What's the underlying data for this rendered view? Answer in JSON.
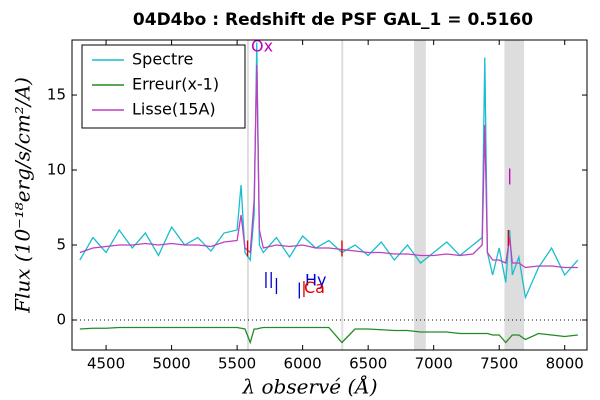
{
  "chart_data": {
    "type": "line",
    "title": "04D4bo : Redshift de PSF GAL_1 = 0.5160",
    "x_label": "λ observé (Å)",
    "y_label": "Flux (10⁻¹⁸erg/s/cm²/A)",
    "x": [
      4300,
      4400,
      4500,
      4600,
      4700,
      4800,
      4900,
      5000,
      5100,
      5200,
      5300,
      5400,
      5500,
      5530,
      5560,
      5600,
      5630,
      5650,
      5670,
      5700,
      5800,
      5900,
      6000,
      6100,
      6200,
      6300,
      6400,
      6500,
      6600,
      6700,
      6800,
      6900,
      7000,
      7100,
      7200,
      7300,
      7370,
      7390,
      7410,
      7450,
      7500,
      7550,
      7580,
      7600,
      7650,
      7700,
      7800,
      7900,
      8000,
      8100
    ],
    "series": [
      {
        "name": "Spectre",
        "color": "#17becf",
        "values": [
          4.0,
          5.5,
          4.5,
          6.0,
          4.8,
          5.8,
          4.3,
          6.2,
          5.0,
          5.5,
          4.6,
          5.8,
          6.0,
          9.0,
          4.5,
          4.0,
          7.0,
          18.5,
          5.0,
          4.5,
          5.5,
          4.2,
          5.6,
          4.8,
          5.3,
          4.5,
          5.0,
          4.3,
          5.2,
          4.0,
          5.0,
          3.8,
          4.5,
          5.2,
          4.3,
          5.0,
          5.5,
          17.5,
          4.5,
          3.0,
          4.8,
          2.5,
          6.0,
          3.0,
          4.2,
          1.5,
          3.5,
          4.8,
          3.0,
          4.0
        ]
      },
      {
        "name": "Erreur(x-1)",
        "color": "#228b22",
        "values": [
          -0.6,
          -0.55,
          -0.55,
          -0.5,
          -0.5,
          -0.5,
          -0.5,
          -0.5,
          -0.5,
          -0.5,
          -0.5,
          -0.5,
          -0.5,
          -0.55,
          -0.6,
          -1.5,
          -0.6,
          -0.6,
          -0.55,
          -0.5,
          -0.5,
          -0.5,
          -0.5,
          -0.5,
          -0.5,
          -1.5,
          -0.6,
          -0.6,
          -0.65,
          -0.7,
          -0.7,
          -0.8,
          -0.8,
          -0.8,
          -0.9,
          -0.9,
          -0.9,
          -0.9,
          -0.9,
          -1.0,
          -1.0,
          -1.5,
          -1.2,
          -1.0,
          -1.0,
          -1.3,
          -0.9,
          -1.0,
          -1.1,
          -1.0
        ]
      },
      {
        "name": "Lisse(15A)",
        "color": "#bf3fbf",
        "values": [
          4.5,
          4.8,
          4.9,
          5.0,
          5.0,
          5.1,
          5.0,
          5.1,
          5.0,
          5.0,
          4.9,
          5.2,
          5.3,
          7.0,
          4.8,
          4.5,
          8.0,
          17.0,
          6.0,
          4.8,
          5.0,
          4.9,
          5.0,
          4.8,
          4.8,
          4.7,
          4.6,
          4.5,
          4.5,
          4.4,
          4.4,
          4.3,
          4.3,
          4.4,
          4.3,
          4.4,
          5.0,
          13.0,
          4.5,
          4.0,
          4.0,
          3.8,
          5.5,
          3.8,
          3.8,
          3.5,
          3.6,
          3.6,
          3.5,
          3.5
        ]
      }
    ],
    "xlim": [
      4240,
      8170
    ],
    "ylim": [
      -2,
      18.67
    ],
    "xticks": [
      4500,
      5000,
      5500,
      6000,
      6500,
      7000,
      7500,
      8000
    ],
    "yticks": [
      0,
      5,
      10,
      15
    ],
    "zero_line": true,
    "legend": "upper left",
    "shaded_regions": [
      [
        5575,
        5590
      ],
      [
        6295,
        6310
      ],
      [
        6850,
        6940
      ],
      [
        7540,
        7690
      ]
    ],
    "annotations": [
      {
        "text": "Ox",
        "x": 5690,
        "y": 18.2,
        "color": "#c000c0"
      },
      {
        "text": "Hy",
        "x": 6100,
        "y": 2.6,
        "color": "#0000cc"
      },
      {
        "text": "Ca",
        "x": 6090,
        "y": 2.1,
        "color": "#dd0000"
      },
      {
        "text": "|",
        "x": 5720,
        "y": 2.7,
        "color": "#0000cc"
      },
      {
        "text": "|",
        "x": 5760,
        "y": 2.7,
        "color": "#0000cc"
      },
      {
        "text": "|",
        "x": 5800,
        "y": 2.3,
        "color": "#0000cc"
      },
      {
        "text": "|",
        "x": 5975,
        "y": 2.0,
        "color": "#0000cc"
      },
      {
        "text": "|",
        "x": 6010,
        "y": 2.1,
        "color": "#dd0000"
      },
      {
        "text": "|",
        "x": 5580,
        "y": 4.8,
        "color": "#dd0000"
      },
      {
        "text": "|",
        "x": 6300,
        "y": 4.8,
        "color": "#dd0000"
      },
      {
        "text": "|",
        "x": 7570,
        "y": 5.5,
        "color": "#dd0000"
      },
      {
        "text": "|",
        "x": 7580,
        "y": 9.6,
        "color": "#c000c0"
      }
    ]
  }
}
